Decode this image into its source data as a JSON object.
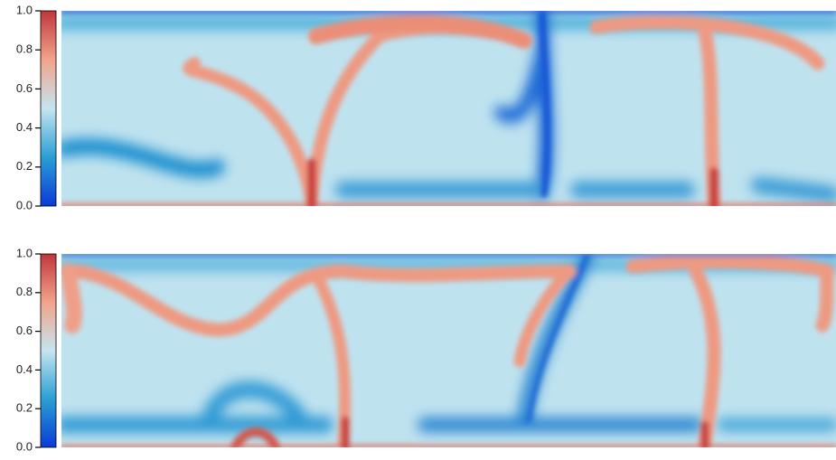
{
  "chart_data": [
    {
      "type": "heatmap",
      "clim": [
        0,
        1
      ],
      "cticks": [
        {
          "value": 0,
          "label": "0.0"
        },
        0.2,
        0.4,
        0.6,
        0.8,
        {
          "value": 1,
          "label": "1.0"
        }
      ],
      "colorscale": [
        "#0a3bd8",
        "#2a9fd4",
        "#c4e5f0",
        "#f2a48a",
        "#c1363c"
      ]
    },
    {
      "type": "heatmap",
      "clim": [
        0,
        1
      ],
      "cticks": [
        {
          "value": 0,
          "label": "0.0"
        },
        0.2,
        0.4,
        0.6,
        0.8,
        {
          "value": 1,
          "label": "1.0"
        }
      ],
      "colorscale": [
        "#0a3bd8",
        "#2a9fd4",
        "#c4e5f0",
        "#f2a48a",
        "#c1363c"
      ]
    }
  ]
}
